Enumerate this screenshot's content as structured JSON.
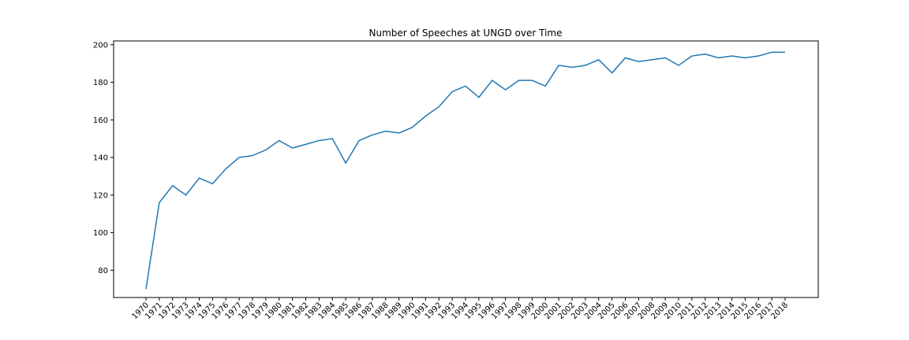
{
  "chart_data": {
    "type": "line",
    "title": "Number of Speeches at UNGD over Time",
    "xlabel": "",
    "ylabel": "",
    "x": [
      "1970",
      "1971",
      "1972",
      "1973",
      "1974",
      "1975",
      "1976",
      "1977",
      "1978",
      "1979",
      "1980",
      "1981",
      "1982",
      "1983",
      "1984",
      "1985",
      "1986",
      "1987",
      "1988",
      "1989",
      "1990",
      "1991",
      "1992",
      "1993",
      "1994",
      "1995",
      "1996",
      "1997",
      "1998",
      "1999",
      "2000",
      "2001",
      "2002",
      "2003",
      "2004",
      "2005",
      "2006",
      "2007",
      "2008",
      "2009",
      "2010",
      "2011",
      "2012",
      "2013",
      "2014",
      "2015",
      "2016",
      "2017",
      "2018"
    ],
    "series": [
      {
        "color": "#1f77b4",
        "values": [
          70,
          116,
          125,
          120,
          129,
          126,
          134,
          140,
          141,
          144,
          149,
          145,
          147,
          149,
          150,
          137,
          149,
          152,
          154,
          153,
          156,
          162,
          167,
          175,
          178,
          172,
          181,
          176,
          181,
          181,
          178,
          189,
          188,
          189,
          192,
          185,
          193,
          191,
          192,
          193,
          189,
          194,
          195,
          193,
          194,
          193,
          194,
          196,
          196
        ]
      }
    ],
    "yticks": [
      80,
      100,
      120,
      140,
      160,
      180,
      200
    ],
    "ylim": [
      65.5,
      202
    ],
    "grid": false,
    "legend": "none"
  }
}
